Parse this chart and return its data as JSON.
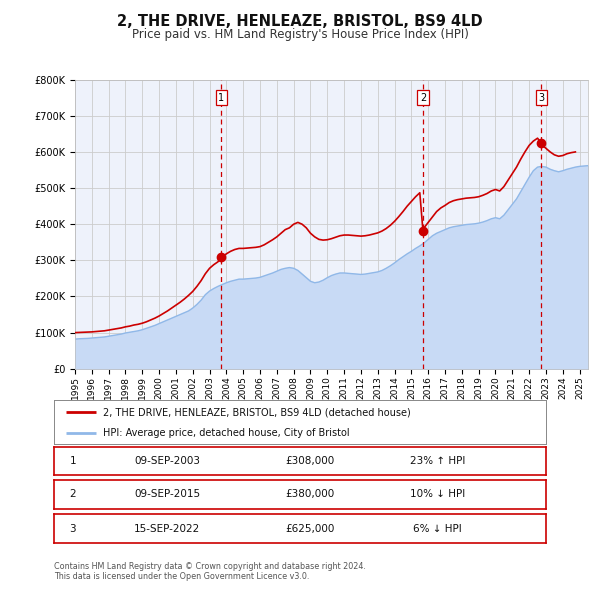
{
  "title": "2, THE DRIVE, HENLEAZE, BRISTOL, BS9 4LD",
  "subtitle": "Price paid vs. HM Land Registry's House Price Index (HPI)",
  "title_fontsize": 10.5,
  "subtitle_fontsize": 8.5,
  "ylim": [
    0,
    800000
  ],
  "yticks": [
    0,
    100000,
    200000,
    300000,
    400000,
    500000,
    600000,
    700000,
    800000
  ],
  "ytick_labels": [
    "£0",
    "£100K",
    "£200K",
    "£300K",
    "£400K",
    "£500K",
    "£600K",
    "£700K",
    "£800K"
  ],
  "xlim_start": 1995.0,
  "xlim_end": 2025.5,
  "background_color": "#ffffff",
  "plot_bg_color": "#eef2fb",
  "grid_color": "#cccccc",
  "sale_color": "#cc0000",
  "hpi_color": "#90b8e8",
  "hpi_fill_color": "#c8daf5",
  "vline_color": "#cc0000",
  "legend_sale_label": "2, THE DRIVE, HENLEAZE, BRISTOL, BS9 4LD (detached house)",
  "legend_hpi_label": "HPI: Average price, detached house, City of Bristol",
  "transactions": [
    {
      "num": 1,
      "date": 2003.69,
      "price": 308000,
      "pct": "23%",
      "dir": "↑",
      "label": "09-SEP-2003",
      "price_label": "£308,000"
    },
    {
      "num": 2,
      "date": 2015.69,
      "price": 380000,
      "pct": "10%",
      "dir": "↓",
      "label": "09-SEP-2015",
      "price_label": "£380,000"
    },
    {
      "num": 3,
      "date": 2022.71,
      "price": 625000,
      "pct": "6%",
      "dir": "↓",
      "label": "15-SEP-2022",
      "price_label": "£625,000"
    }
  ],
  "footer1": "Contains HM Land Registry data © Crown copyright and database right 2024.",
  "footer2": "This data is licensed under the Open Government Licence v3.0.",
  "hpi_data": [
    [
      1995.0,
      82000
    ],
    [
      1995.25,
      83000
    ],
    [
      1995.5,
      83500
    ],
    [
      1995.75,
      84000
    ],
    [
      1996.0,
      85000
    ],
    [
      1996.25,
      86000
    ],
    [
      1996.5,
      87000
    ],
    [
      1996.75,
      88000
    ],
    [
      1997.0,
      90000
    ],
    [
      1997.25,
      92000
    ],
    [
      1997.5,
      94000
    ],
    [
      1997.75,
      96000
    ],
    [
      1998.0,
      99000
    ],
    [
      1998.25,
      101000
    ],
    [
      1998.5,
      103000
    ],
    [
      1998.75,
      105000
    ],
    [
      1999.0,
      108000
    ],
    [
      1999.25,
      112000
    ],
    [
      1999.5,
      116000
    ],
    [
      1999.75,
      120000
    ],
    [
      2000.0,
      125000
    ],
    [
      2000.25,
      130000
    ],
    [
      2000.5,
      135000
    ],
    [
      2000.75,
      140000
    ],
    [
      2001.0,
      145000
    ],
    [
      2001.25,
      150000
    ],
    [
      2001.5,
      155000
    ],
    [
      2001.75,
      160000
    ],
    [
      2002.0,
      168000
    ],
    [
      2002.25,
      178000
    ],
    [
      2002.5,
      190000
    ],
    [
      2002.75,
      205000
    ],
    [
      2003.0,
      215000
    ],
    [
      2003.25,
      222000
    ],
    [
      2003.5,
      228000
    ],
    [
      2003.75,
      233000
    ],
    [
      2004.0,
      238000
    ],
    [
      2004.25,
      242000
    ],
    [
      2004.5,
      245000
    ],
    [
      2004.75,
      248000
    ],
    [
      2005.0,
      248000
    ],
    [
      2005.25,
      249000
    ],
    [
      2005.5,
      250000
    ],
    [
      2005.75,
      251000
    ],
    [
      2006.0,
      253000
    ],
    [
      2006.25,
      257000
    ],
    [
      2006.5,
      261000
    ],
    [
      2006.75,
      265000
    ],
    [
      2007.0,
      270000
    ],
    [
      2007.25,
      275000
    ],
    [
      2007.5,
      278000
    ],
    [
      2007.75,
      280000
    ],
    [
      2008.0,
      278000
    ],
    [
      2008.25,
      272000
    ],
    [
      2008.5,
      262000
    ],
    [
      2008.75,
      252000
    ],
    [
      2009.0,
      242000
    ],
    [
      2009.25,
      238000
    ],
    [
      2009.5,
      240000
    ],
    [
      2009.75,
      245000
    ],
    [
      2010.0,
      252000
    ],
    [
      2010.25,
      258000
    ],
    [
      2010.5,
      262000
    ],
    [
      2010.75,
      265000
    ],
    [
      2011.0,
      265000
    ],
    [
      2011.25,
      264000
    ],
    [
      2011.5,
      263000
    ],
    [
      2011.75,
      262000
    ],
    [
      2012.0,
      261000
    ],
    [
      2012.25,
      262000
    ],
    [
      2012.5,
      264000
    ],
    [
      2012.75,
      266000
    ],
    [
      2013.0,
      268000
    ],
    [
      2013.25,
      272000
    ],
    [
      2013.5,
      278000
    ],
    [
      2013.75,
      285000
    ],
    [
      2014.0,
      293000
    ],
    [
      2014.25,
      302000
    ],
    [
      2014.5,
      310000
    ],
    [
      2014.75,
      318000
    ],
    [
      2015.0,
      325000
    ],
    [
      2015.25,
      333000
    ],
    [
      2015.5,
      340000
    ],
    [
      2015.75,
      348000
    ],
    [
      2016.0,
      358000
    ],
    [
      2016.25,
      368000
    ],
    [
      2016.5,
      375000
    ],
    [
      2016.75,
      380000
    ],
    [
      2017.0,
      385000
    ],
    [
      2017.25,
      390000
    ],
    [
      2017.5,
      393000
    ],
    [
      2017.75,
      395000
    ],
    [
      2018.0,
      397000
    ],
    [
      2018.25,
      399000
    ],
    [
      2018.5,
      400000
    ],
    [
      2018.75,
      401000
    ],
    [
      2019.0,
      403000
    ],
    [
      2019.25,
      406000
    ],
    [
      2019.5,
      410000
    ],
    [
      2019.75,
      415000
    ],
    [
      2020.0,
      418000
    ],
    [
      2020.25,
      415000
    ],
    [
      2020.5,
      425000
    ],
    [
      2020.75,
      440000
    ],
    [
      2021.0,
      455000
    ],
    [
      2021.25,
      470000
    ],
    [
      2021.5,
      490000
    ],
    [
      2021.75,
      510000
    ],
    [
      2022.0,
      530000
    ],
    [
      2022.25,
      548000
    ],
    [
      2022.5,
      558000
    ],
    [
      2022.75,
      560000
    ],
    [
      2023.0,
      558000
    ],
    [
      2023.25,
      552000
    ],
    [
      2023.5,
      548000
    ],
    [
      2023.75,
      545000
    ],
    [
      2024.0,
      548000
    ],
    [
      2024.25,
      552000
    ],
    [
      2024.5,
      555000
    ],
    [
      2024.75,
      558000
    ],
    [
      2025.0,
      560000
    ],
    [
      2025.5,
      562000
    ]
  ],
  "sale_data": [
    [
      1995.0,
      100000
    ],
    [
      1995.25,
      100500
    ],
    [
      1995.5,
      101000
    ],
    [
      1995.75,
      101500
    ],
    [
      1996.0,
      102000
    ],
    [
      1996.25,
      103000
    ],
    [
      1996.5,
      104000
    ],
    [
      1996.75,
      105000
    ],
    [
      1997.0,
      107000
    ],
    [
      1997.25,
      109000
    ],
    [
      1997.5,
      111000
    ],
    [
      1997.75,
      113000
    ],
    [
      1998.0,
      116000
    ],
    [
      1998.25,
      118000
    ],
    [
      1998.5,
      121000
    ],
    [
      1998.75,
      123000
    ],
    [
      1999.0,
      126000
    ],
    [
      1999.25,
      130000
    ],
    [
      1999.5,
      135000
    ],
    [
      1999.75,
      140000
    ],
    [
      2000.0,
      146000
    ],
    [
      2000.25,
      153000
    ],
    [
      2000.5,
      160000
    ],
    [
      2000.75,
      168000
    ],
    [
      2001.0,
      176000
    ],
    [
      2001.25,
      184000
    ],
    [
      2001.5,
      193000
    ],
    [
      2001.75,
      203000
    ],
    [
      2002.0,
      214000
    ],
    [
      2002.25,
      228000
    ],
    [
      2002.5,
      244000
    ],
    [
      2002.75,
      263000
    ],
    [
      2003.0,
      278000
    ],
    [
      2003.25,
      288000
    ],
    [
      2003.5,
      296000
    ],
    [
      2003.69,
      308000
    ],
    [
      2003.75,
      310000
    ],
    [
      2004.0,
      318000
    ],
    [
      2004.25,
      325000
    ],
    [
      2004.5,
      330000
    ],
    [
      2004.75,
      333000
    ],
    [
      2005.0,
      333000
    ],
    [
      2005.25,
      334000
    ],
    [
      2005.5,
      335000
    ],
    [
      2005.75,
      336000
    ],
    [
      2006.0,
      338000
    ],
    [
      2006.25,
      343000
    ],
    [
      2006.5,
      350000
    ],
    [
      2006.75,
      357000
    ],
    [
      2007.0,
      365000
    ],
    [
      2007.25,
      375000
    ],
    [
      2007.5,
      385000
    ],
    [
      2007.75,
      390000
    ],
    [
      2008.0,
      400000
    ],
    [
      2008.25,
      405000
    ],
    [
      2008.5,
      400000
    ],
    [
      2008.75,
      390000
    ],
    [
      2009.0,
      375000
    ],
    [
      2009.25,
      365000
    ],
    [
      2009.5,
      358000
    ],
    [
      2009.75,
      356000
    ],
    [
      2010.0,
      357000
    ],
    [
      2010.25,
      360000
    ],
    [
      2010.5,
      364000
    ],
    [
      2010.75,
      368000
    ],
    [
      2011.0,
      370000
    ],
    [
      2011.25,
      370000
    ],
    [
      2011.5,
      369000
    ],
    [
      2011.75,
      368000
    ],
    [
      2012.0,
      367000
    ],
    [
      2012.25,
      368000
    ],
    [
      2012.5,
      370000
    ],
    [
      2012.75,
      373000
    ],
    [
      2013.0,
      376000
    ],
    [
      2013.25,
      381000
    ],
    [
      2013.5,
      388000
    ],
    [
      2013.75,
      397000
    ],
    [
      2014.0,
      408000
    ],
    [
      2014.25,
      421000
    ],
    [
      2014.5,
      435000
    ],
    [
      2014.75,
      450000
    ],
    [
      2015.0,
      463000
    ],
    [
      2015.25,
      476000
    ],
    [
      2015.5,
      487000
    ],
    [
      2015.69,
      380000
    ],
    [
      2015.75,
      390000
    ],
    [
      2016.0,
      405000
    ],
    [
      2016.25,
      420000
    ],
    [
      2016.5,
      435000
    ],
    [
      2016.75,
      445000
    ],
    [
      2017.0,
      452000
    ],
    [
      2017.25,
      460000
    ],
    [
      2017.5,
      465000
    ],
    [
      2017.75,
      468000
    ],
    [
      2018.0,
      470000
    ],
    [
      2018.25,
      472000
    ],
    [
      2018.5,
      473000
    ],
    [
      2018.75,
      474000
    ],
    [
      2019.0,
      476000
    ],
    [
      2019.25,
      480000
    ],
    [
      2019.5,
      485000
    ],
    [
      2019.75,
      492000
    ],
    [
      2020.0,
      496000
    ],
    [
      2020.25,
      492000
    ],
    [
      2020.5,
      504000
    ],
    [
      2020.75,
      522000
    ],
    [
      2021.0,
      540000
    ],
    [
      2021.25,
      558000
    ],
    [
      2021.5,
      580000
    ],
    [
      2021.75,
      600000
    ],
    [
      2022.0,
      618000
    ],
    [
      2022.25,
      630000
    ],
    [
      2022.5,
      638000
    ],
    [
      2022.71,
      625000
    ],
    [
      2022.75,
      620000
    ],
    [
      2023.0,
      610000
    ],
    [
      2023.25,
      600000
    ],
    [
      2023.5,
      592000
    ],
    [
      2023.75,
      588000
    ],
    [
      2024.0,
      590000
    ],
    [
      2024.25,
      595000
    ],
    [
      2024.5,
      598000
    ],
    [
      2024.75,
      600000
    ]
  ]
}
